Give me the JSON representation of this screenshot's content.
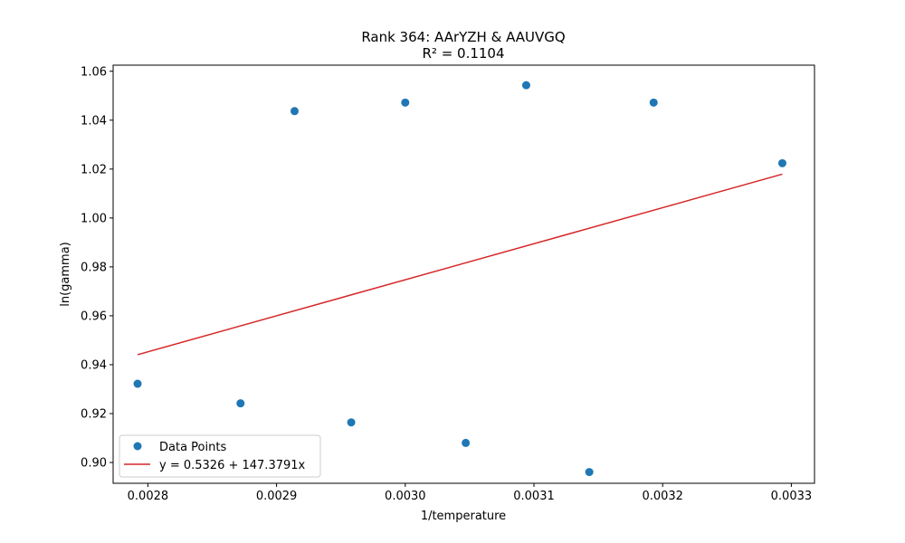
{
  "chart_data": {
    "type": "scatter",
    "title": "Rank 364: AArYZH & AAUVGQ",
    "subtitle": "R² = 0.1104",
    "xlabel": "1/temperature",
    "ylabel": "ln(gamma)",
    "xlim": [
      0.002773,
      0.003318
    ],
    "ylim": [
      0.8915,
      1.0625
    ],
    "xticks": [
      0.0028,
      0.0029,
      0.003,
      0.0031,
      0.0032,
      0.0033
    ],
    "xtick_labels": [
      "0.0028",
      "0.0029",
      "0.0030",
      "0.0031",
      "0.0032",
      "0.0033"
    ],
    "yticks": [
      0.9,
      0.92,
      0.94,
      0.96,
      0.98,
      1.0,
      1.02,
      1.04,
      1.06
    ],
    "ytick_labels": [
      "0.90",
      "0.92",
      "0.94",
      "0.96",
      "0.98",
      "1.00",
      "1.02",
      "1.04",
      "1.06"
    ],
    "grid": false,
    "legend_position": "lower-left",
    "series": [
      {
        "name": "Data Points",
        "kind": "scatter",
        "color": "#1f77b4",
        "points": [
          {
            "x": 0.002792,
            "y": 0.9322
          },
          {
            "x": 0.002872,
            "y": 0.9242
          },
          {
            "x": 0.002914,
            "y": 1.0437
          },
          {
            "x": 0.002958,
            "y": 0.9164
          },
          {
            "x": 0.003,
            "y": 1.0472
          },
          {
            "x": 0.003047,
            "y": 0.908
          },
          {
            "x": 0.003094,
            "y": 1.0543
          },
          {
            "x": 0.003143,
            "y": 0.8961
          },
          {
            "x": 0.003193,
            "y": 1.0472
          },
          {
            "x": 0.003293,
            "y": 1.0224
          }
        ]
      },
      {
        "name": "y = 0.5326 + 147.3791x",
        "kind": "line",
        "color": "#d62728",
        "intercept": 0.5326,
        "slope": 147.3791,
        "x_range": [
          0.002792,
          0.003293
        ]
      }
    ]
  }
}
